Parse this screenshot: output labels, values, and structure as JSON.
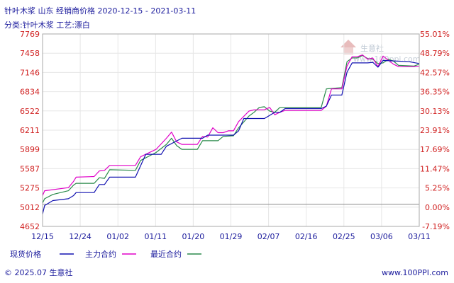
{
  "header": {
    "title": "针叶木浆 山东 经销商价格 2020-12-15 - 2021-03-11",
    "subtitle": "分类:针叶木浆 工艺:漂白"
  },
  "watermark": {
    "text": "生意社",
    "url": "www.100ppi.com"
  },
  "footer": {
    "copyright": "© 2025.07 生意社",
    "site": "www.100PPI.com"
  },
  "colors": {
    "title": "#1a1a9c",
    "left_axis": "#d02020",
    "right_axis": "#d02020",
    "spot": "#1010b0",
    "main_contract": "#e000c8",
    "latest_contract": "#2a8a4a",
    "grid": "#e6e6e6",
    "baseline": "#8a8a8a"
  },
  "chart_data": {
    "type": "line",
    "x_ticks": [
      "12/15",
      "12/24",
      "01/02",
      "01/11",
      "01/20",
      "01/29",
      "02/07",
      "02/16",
      "02/25",
      "03/06",
      "03/11"
    ],
    "y_left_ticks": [
      "7769",
      "7458",
      "7146",
      "6834",
      "6522",
      "6211",
      "5899",
      "5587",
      "5275",
      "5012",
      "4652"
    ],
    "y_right_ticks": [
      "55.01%",
      "48.79%",
      "42.57%",
      "36.35%",
      "30.13%",
      "23.91%",
      "17.69%",
      "11.47%",
      "5.25%",
      "0.00%",
      "-7.19%"
    ],
    "ylim_left": [
      4652,
      7769
    ],
    "ylim_right": [
      -7.19,
      55.01
    ],
    "baseline_value": 5012,
    "grid": true,
    "legend_position": "bottom",
    "series": [
      {
        "name": "现货价格",
        "color": "#1010b0",
        "points": [
          [
            0,
            4850
          ],
          [
            0.4,
            4990
          ],
          [
            2,
            5070
          ],
          [
            5,
            5100
          ],
          [
            6,
            5150
          ],
          [
            6.5,
            5200
          ],
          [
            10,
            5200
          ],
          [
            11,
            5330
          ],
          [
            12,
            5330
          ],
          [
            13,
            5450
          ],
          [
            18,
            5450
          ],
          [
            20,
            5820
          ],
          [
            23,
            5820
          ],
          [
            24,
            5950
          ],
          [
            27,
            6080
          ],
          [
            31,
            6080
          ],
          [
            32,
            6130
          ],
          [
            37,
            6130
          ],
          [
            38,
            6200
          ],
          [
            39,
            6400
          ],
          [
            43,
            6400
          ],
          [
            44,
            6450
          ],
          [
            45,
            6500
          ],
          [
            46,
            6500
          ],
          [
            47,
            6560
          ],
          [
            54,
            6560
          ],
          [
            55,
            6600
          ],
          [
            56,
            6780
          ],
          [
            58,
            6780
          ],
          [
            59,
            7150
          ],
          [
            60,
            7300
          ],
          [
            63,
            7300
          ],
          [
            64,
            7310
          ],
          [
            65,
            7230
          ],
          [
            66,
            7340
          ],
          [
            71,
            7320
          ],
          [
            73,
            7290
          ]
        ]
      },
      {
        "name": "主力合约",
        "color": "#e000c8",
        "points": [
          [
            0,
            5150
          ],
          [
            0.4,
            5230
          ],
          [
            5,
            5280
          ],
          [
            6,
            5380
          ],
          [
            6.5,
            5450
          ],
          [
            10,
            5460
          ],
          [
            11,
            5550
          ],
          [
            12,
            5560
          ],
          [
            13,
            5640
          ],
          [
            18,
            5640
          ],
          [
            19,
            5780
          ],
          [
            22,
            5900
          ],
          [
            24,
            6080
          ],
          [
            25,
            6180
          ],
          [
            26,
            6020
          ],
          [
            27,
            5980
          ],
          [
            30,
            5980
          ],
          [
            31,
            6110
          ],
          [
            32,
            6100
          ],
          [
            33,
            6250
          ],
          [
            34,
            6170
          ],
          [
            35,
            6170
          ],
          [
            36,
            6200
          ],
          [
            37,
            6200
          ],
          [
            38,
            6350
          ],
          [
            40,
            6520
          ],
          [
            41,
            6540
          ],
          [
            43,
            6540
          ],
          [
            44,
            6580
          ],
          [
            45,
            6460
          ],
          [
            46,
            6500
          ],
          [
            47,
            6530
          ],
          [
            54,
            6530
          ],
          [
            55,
            6600
          ],
          [
            56,
            6880
          ],
          [
            58,
            6880
          ],
          [
            59,
            7250
          ],
          [
            60,
            7400
          ],
          [
            61,
            7400
          ],
          [
            62,
            7430
          ],
          [
            63,
            7360
          ],
          [
            64,
            7380
          ],
          [
            65,
            7240
          ],
          [
            66,
            7410
          ],
          [
            68,
            7280
          ],
          [
            69,
            7240
          ],
          [
            72,
            7240
          ],
          [
            73,
            7250
          ]
        ]
      },
      {
        "name": "最近合约",
        "color": "#2a8a4a",
        "points": [
          [
            0,
            5030
          ],
          [
            0.4,
            5100
          ],
          [
            2,
            5170
          ],
          [
            5,
            5230
          ],
          [
            6,
            5320
          ],
          [
            6.5,
            5350
          ],
          [
            10,
            5350
          ],
          [
            11,
            5440
          ],
          [
            12,
            5430
          ],
          [
            13,
            5570
          ],
          [
            18,
            5560
          ],
          [
            19,
            5720
          ],
          [
            22,
            5850
          ],
          [
            24,
            5980
          ],
          [
            25,
            6080
          ],
          [
            26,
            5960
          ],
          [
            27,
            5900
          ],
          [
            30,
            5900
          ],
          [
            31,
            6040
          ],
          [
            34,
            6040
          ],
          [
            35,
            6110
          ],
          [
            37,
            6120
          ],
          [
            38,
            6250
          ],
          [
            40,
            6440
          ],
          [
            41,
            6500
          ],
          [
            42,
            6580
          ],
          [
            43,
            6590
          ],
          [
            44,
            6520
          ],
          [
            45,
            6500
          ],
          [
            46,
            6580
          ],
          [
            54,
            6580
          ],
          [
            55,
            6880
          ],
          [
            58,
            6900
          ],
          [
            59,
            7320
          ],
          [
            60,
            7380
          ],
          [
            61,
            7380
          ],
          [
            62,
            7420
          ],
          [
            63,
            7370
          ],
          [
            64,
            7360
          ],
          [
            65,
            7290
          ],
          [
            66,
            7300
          ],
          [
            67,
            7360
          ],
          [
            68,
            7330
          ],
          [
            69,
            7260
          ],
          [
            72,
            7250
          ],
          [
            73,
            7280
          ]
        ]
      }
    ]
  }
}
